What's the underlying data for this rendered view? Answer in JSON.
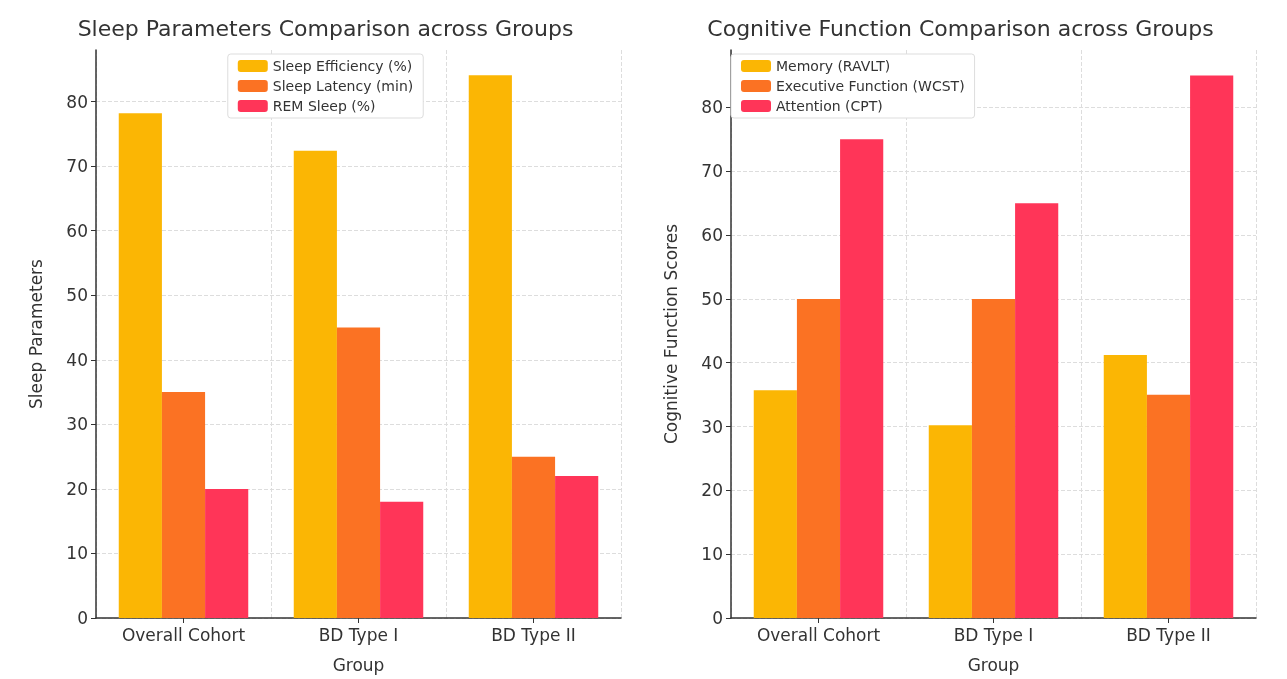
{
  "chart_data": [
    {
      "type": "bar",
      "title": "Sleep Parameters Comparison across Groups",
      "xlabel": "Group",
      "ylabel": "Sleep Parameters",
      "categories": [
        "Overall Cohort",
        "BD Type I",
        "BD Type II"
      ],
      "series": [
        {
          "name": "Sleep Efficiency (%)",
          "color": "#fbb604",
          "values": [
            78.2,
            72.4,
            84.1
          ]
        },
        {
          "name": "Sleep Latency (min)",
          "color": "#fb7223",
          "values": [
            35,
            45,
            25
          ]
        },
        {
          "name": "REM Sleep (%)",
          "color": "#ff3558",
          "values": [
            20,
            18,
            22
          ]
        }
      ],
      "ylim": [
        0,
        88
      ],
      "yticks": [
        0,
        10,
        20,
        30,
        40,
        50,
        60,
        70,
        80
      ],
      "grid": true,
      "legend": "top"
    },
    {
      "type": "bar",
      "title": "Cognitive Function Comparison across Groups",
      "xlabel": "Group",
      "ylabel": "Cognitive Function Scores",
      "categories": [
        "Overall Cohort",
        "BD Type I",
        "BD Type II"
      ],
      "series": [
        {
          "name": "Memory (RAVLT)",
          "color": "#fbb604",
          "values": [
            35.7,
            30.2,
            41.2
          ]
        },
        {
          "name": "Executive Function (WCST)",
          "color": "#fb7223",
          "values": [
            50,
            50,
            35
          ]
        },
        {
          "name": "Attention (CPT)",
          "color": "#ff3558",
          "values": [
            75,
            65,
            85
          ]
        }
      ],
      "ylim": [
        0,
        89
      ],
      "yticks": [
        0,
        10,
        20,
        30,
        40,
        50,
        60,
        70,
        80
      ],
      "grid": true,
      "legend": "top left"
    }
  ]
}
